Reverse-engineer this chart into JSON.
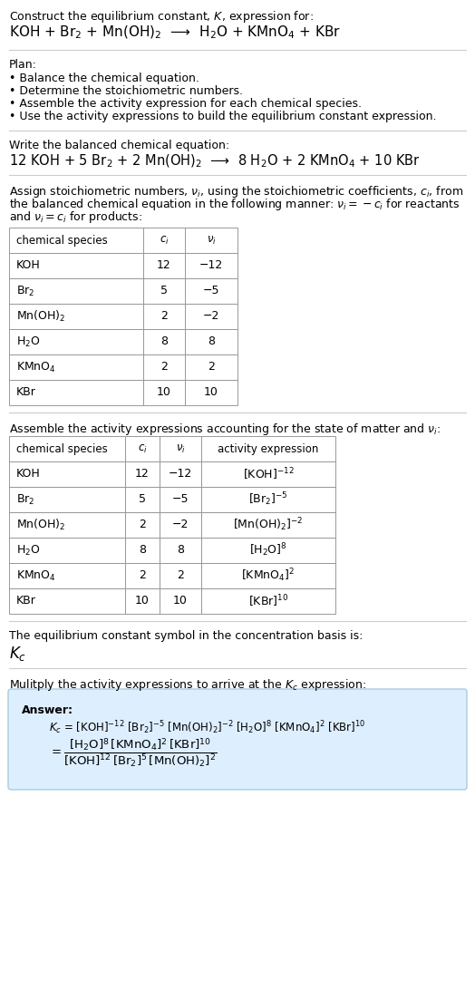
{
  "title_line1": "Construct the equilibrium constant, $K$, expression for:",
  "title_line2": "KOH + Br$_2$ + Mn(OH)$_2$  ⟶  H$_2$O + KMnO$_4$ + KBr",
  "plan_header": "Plan:",
  "plan_items": [
    "• Balance the chemical equation.",
    "• Determine the stoichiometric numbers.",
    "• Assemble the activity expression for each chemical species.",
    "• Use the activity expressions to build the equilibrium constant expression."
  ],
  "balanced_header": "Write the balanced chemical equation:",
  "balanced_eq": "12 KOH + 5 Br$_2$ + 2 Mn(OH)$_2$  ⟶  8 H$_2$O + 2 KMnO$_4$ + 10 KBr",
  "stoich_intro_parts": [
    "Assign stoichiometric numbers, $\\nu_i$, using the stoichiometric coefficients, $c_i$, from",
    "the balanced chemical equation in the following manner: $\\nu_i = -c_i$ for reactants",
    "and $\\nu_i = c_i$ for products:"
  ],
  "table1_headers": [
    "chemical species",
    "$c_i$",
    "$\\nu_i$"
  ],
  "table1_data": [
    [
      "KOH",
      "12",
      "−12"
    ],
    [
      "Br$_2$",
      "5",
      "−5"
    ],
    [
      "Mn(OH)$_2$",
      "2",
      "−2"
    ],
    [
      "H$_2$O",
      "8",
      "8"
    ],
    [
      "KMnO$_4$",
      "2",
      "2"
    ],
    [
      "KBr",
      "10",
      "10"
    ]
  ],
  "activity_intro": "Assemble the activity expressions accounting for the state of matter and $\\nu_i$:",
  "table2_headers": [
    "chemical species",
    "$c_i$",
    "$\\nu_i$",
    "activity expression"
  ],
  "table2_data": [
    [
      "KOH",
      "12",
      "−12",
      "[KOH]$^{-12}$"
    ],
    [
      "Br$_2$",
      "5",
      "−5",
      "[Br$_2$]$^{-5}$"
    ],
    [
      "Mn(OH)$_2$",
      "2",
      "−2",
      "[Mn(OH)$_2$]$^{-2}$"
    ],
    [
      "H$_2$O",
      "8",
      "8",
      "[H$_2$O]$^8$"
    ],
    [
      "KMnO$_4$",
      "2",
      "2",
      "[KMnO$_4$]$^2$"
    ],
    [
      "KBr",
      "10",
      "10",
      "[KBr]$^{10}$"
    ]
  ],
  "kc_header": "The equilibrium constant symbol in the concentration basis is:",
  "kc_symbol": "$K_c$",
  "multiply_header": "Mulitply the activity expressions to arrive at the $K_c$ expression:",
  "answer_label": "Answer:",
  "answer_line1": "$K_c$ = [KOH]$^{-12}$ [Br$_2$]$^{-5}$ [Mn(OH)$_2$]$^{-2}$ [H$_2$O]$^8$ [KMnO$_4$]$^2$ [KBr]$^{10}$",
  "bg_color": "#ffffff",
  "table_border_color": "#999999",
  "answer_box_color": "#ddeeff",
  "answer_box_border": "#aaccdd",
  "text_color": "#000000",
  "font_size": 9.0,
  "line_color": "#cccccc"
}
